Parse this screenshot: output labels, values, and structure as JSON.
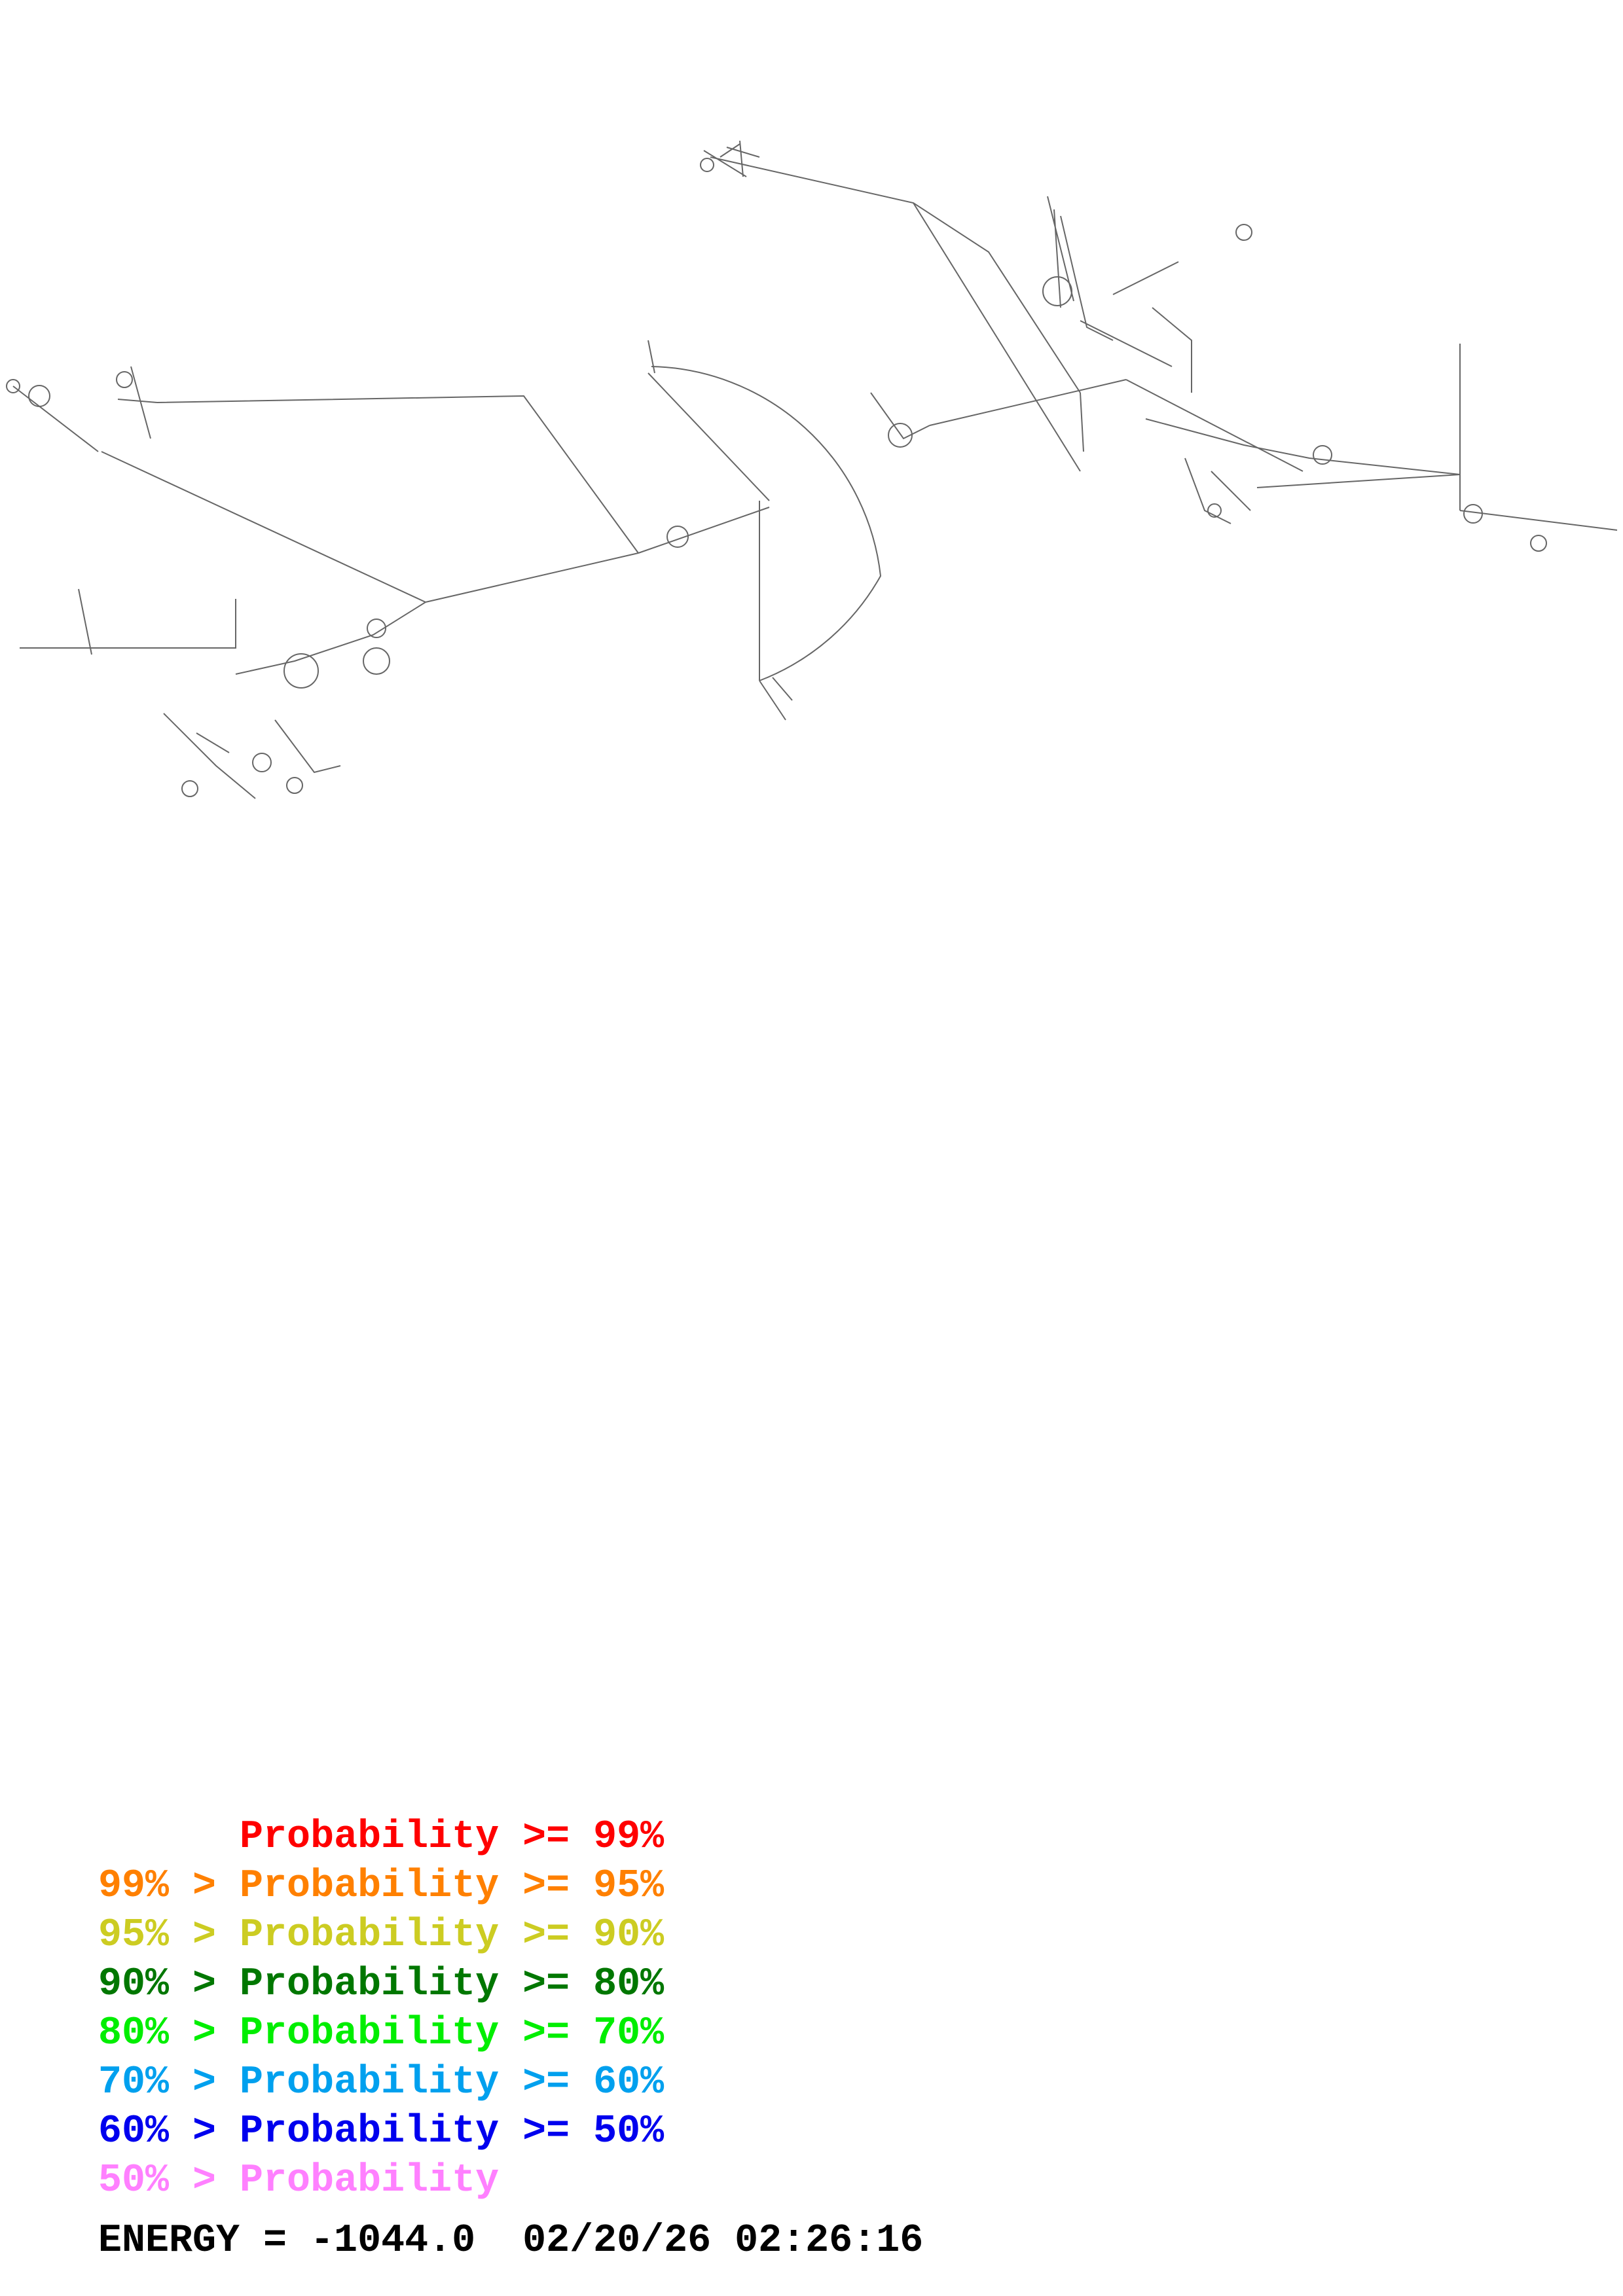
{
  "legend": {
    "rows": [
      {
        "prefix": "",
        "text": "Probability >= 99%",
        "color": "#ff0000"
      },
      {
        "prefix": "99% > ",
        "text": "Probability >= 95%",
        "color": "#ff8000"
      },
      {
        "prefix": "95% > ",
        "text": "Probability >= 90%",
        "color": "#cccc22"
      },
      {
        "prefix": "90% > ",
        "text": "Probability >= 80%",
        "color": "#007700"
      },
      {
        "prefix": "80% > ",
        "text": "Probability >= 70%",
        "color": "#00ee00"
      },
      {
        "prefix": "70% > ",
        "text": "Probability >= 60%",
        "color": "#00a0ee"
      },
      {
        "prefix": "60% > ",
        "text": "Probability >= 50%",
        "color": "#0000ee"
      },
      {
        "prefix": "50% > ",
        "text": "Probability",
        "color": "#ff80ff"
      }
    ]
  },
  "footer": {
    "energy": "ENERGY = -1044.0",
    "timestamp": "02/20/26 02:26:16"
  },
  "diagram": {
    "type": "rna-secondary-structure",
    "line_color": "#555555"
  }
}
